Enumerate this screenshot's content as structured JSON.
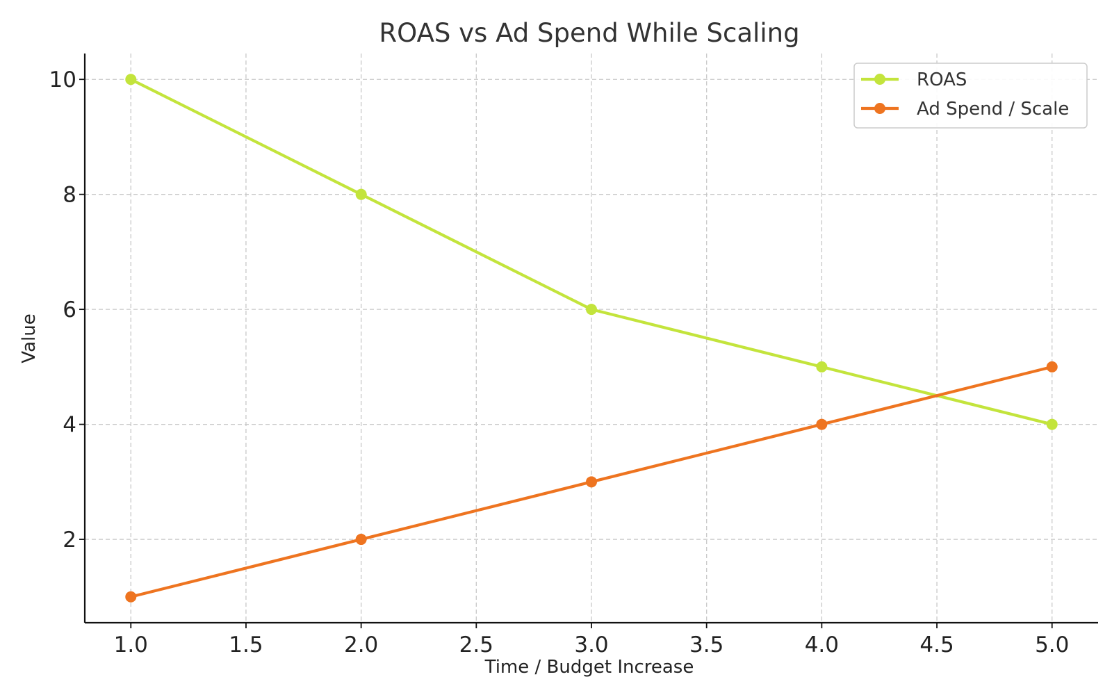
{
  "chart_data": {
    "type": "line",
    "title": "ROAS vs Ad Spend While Scaling",
    "xlabel": "Time / Budget Increase",
    "ylabel": "Value",
    "x": [
      1,
      2,
      3,
      4,
      5
    ],
    "xlim": [
      0.8,
      5.2
    ],
    "ylim": [
      0.55,
      10.45
    ],
    "x_ticks": [
      1.0,
      1.5,
      2.0,
      2.5,
      3.0,
      3.5,
      4.0,
      4.5,
      5.0
    ],
    "x_tick_labels": [
      "1.0",
      "1.5",
      "2.0",
      "2.5",
      "3.0",
      "3.5",
      "4.0",
      "4.5",
      "5.0"
    ],
    "y_ticks": [
      2,
      4,
      6,
      8,
      10
    ],
    "y_tick_labels": [
      "2",
      "4",
      "6",
      "8",
      "10"
    ],
    "grid": true,
    "legend_position": "top-right",
    "series": [
      {
        "name": "ROAS",
        "values": [
          10,
          8,
          6,
          5,
          4
        ],
        "color": "#c3e43c"
      },
      {
        "name": "Ad Spend / Scale",
        "values": [
          1,
          2,
          3,
          4,
          5
        ],
        "color": "#ee7420"
      }
    ]
  }
}
